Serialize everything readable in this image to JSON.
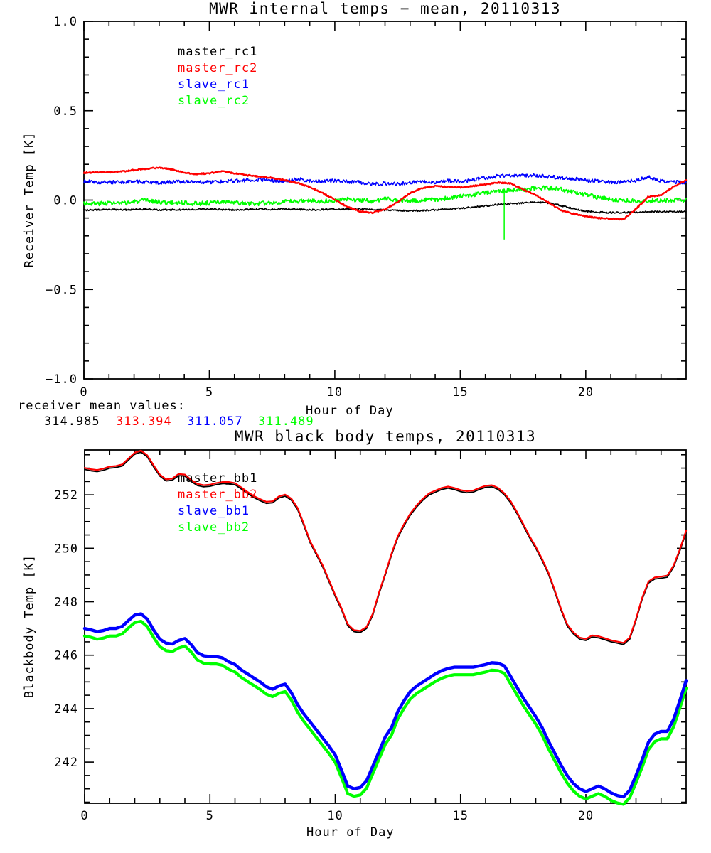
{
  "figure": {
    "background": "#ffffff",
    "text_color": "#000000"
  },
  "chart_data": [
    {
      "type": "line",
      "title": "MWR internal temps − mean, 20110313",
      "xlabel": "Hour of Day",
      "ylabel": "Receiver Temp [K]",
      "xlim": [
        0,
        24
      ],
      "ylim": [
        -1.0,
        1.0
      ],
      "grid": false,
      "legend_position": "top-left-inside",
      "xticks": {
        "major": [
          0,
          5,
          10,
          15,
          20
        ],
        "labels": [
          "0",
          "5",
          "10",
          "15",
          "20"
        ],
        "minor_step": 1
      },
      "yticks": {
        "major": [
          1.0,
          0.5,
          0.0,
          -0.5,
          -1.0
        ],
        "labels": [
          "1.0",
          "0.5",
          "0.0",
          "−0.5",
          "−1.0"
        ],
        "minor_step": 0.1
      },
      "legend": [
        {
          "label": "master_rc1",
          "color": "#000000"
        },
        {
          "label": "master_rc2",
          "color": "#ff0000"
        },
        {
          "label": "slave_rc1",
          "color": "#0000ff"
        },
        {
          "label": "slave_rc2",
          "color": "#00ff00"
        }
      ],
      "x": [
        0,
        0.5,
        1,
        1.5,
        2,
        2.5,
        3,
        3.5,
        4,
        4.5,
        5,
        5.5,
        6,
        6.5,
        7,
        7.5,
        8,
        8.5,
        9,
        9.5,
        10,
        10.5,
        11,
        11.5,
        12,
        12.5,
        13,
        13.5,
        14,
        14.5,
        15,
        15.5,
        16,
        16.5,
        17,
        17.5,
        18,
        18.5,
        19,
        19.5,
        20,
        20.5,
        21,
        21.5,
        22,
        22.5,
        23,
        23.5,
        24
      ],
      "series": [
        {
          "name": "slave_rc2",
          "color": "#00ff00",
          "width": 1.8,
          "noise": 0.012,
          "values": [
            -0.016,
            -0.02,
            -0.015,
            -0.02,
            -0.01,
            -0.002,
            -0.01,
            -0.016,
            -0.014,
            -0.02,
            -0.016,
            -0.01,
            -0.015,
            -0.02,
            -0.02,
            -0.014,
            -0.01,
            -0.006,
            -0.002,
            -0.006,
            0,
            0.004,
            0,
            -0.006,
            0.008,
            -0.002,
            -0.006,
            0,
            0.004,
            0.01,
            0.02,
            0.03,
            0.044,
            0.051,
            0.055,
            0.06,
            0.066,
            0.07,
            0.06,
            0.045,
            0.03,
            0.014,
            0.004,
            0,
            -0.002,
            -0.006,
            -0.002,
            0,
            0
          ]
        },
        {
          "name": "master_rc1",
          "color": "#000000",
          "width": 1.6,
          "noise": 0.0045,
          "values": [
            -0.055,
            -0.055,
            -0.052,
            -0.055,
            -0.053,
            -0.05,
            -0.055,
            -0.053,
            -0.055,
            -0.052,
            -0.05,
            -0.053,
            -0.055,
            -0.052,
            -0.05,
            -0.052,
            -0.05,
            -0.052,
            -0.055,
            -0.053,
            -0.05,
            -0.052,
            -0.05,
            -0.053,
            -0.055,
            -0.058,
            -0.06,
            -0.058,
            -0.055,
            -0.05,
            -0.045,
            -0.04,
            -0.032,
            -0.025,
            -0.02,
            -0.016,
            -0.012,
            -0.016,
            -0.03,
            -0.048,
            -0.062,
            -0.068,
            -0.07,
            -0.07,
            -0.068,
            -0.066,
            -0.065,
            -0.065,
            -0.065
          ]
        },
        {
          "name": "slave_rc1",
          "color": "#0000ff",
          "width": 1.6,
          "noise": 0.01,
          "values": [
            0.105,
            0.102,
            0.1,
            0.103,
            0.105,
            0.1,
            0.098,
            0.1,
            0.104,
            0.102,
            0.1,
            0.104,
            0.108,
            0.112,
            0.115,
            0.11,
            0.105,
            0.118,
            0.11,
            0.104,
            0.108,
            0.104,
            0.1,
            0.09,
            0.094,
            0.09,
            0.098,
            0.104,
            0.1,
            0.108,
            0.104,
            0.114,
            0.124,
            0.134,
            0.139,
            0.135,
            0.139,
            0.131,
            0.125,
            0.12,
            0.111,
            0.106,
            0.1,
            0.104,
            0.109,
            0.131,
            0.106,
            0.1,
            0.1
          ]
        },
        {
          "name": "master_rc2",
          "color": "#ff0000",
          "width": 2.4,
          "noise": 0.0035,
          "values": [
            0.153,
            0.155,
            0.156,
            0.16,
            0.168,
            0.176,
            0.181,
            0.172,
            0.152,
            0.146,
            0.15,
            0.161,
            0.15,
            0.139,
            0.131,
            0.124,
            0.112,
            0.096,
            0.072,
            0.04,
            0.002,
            -0.038,
            -0.063,
            -0.07,
            -0.052,
            -0.012,
            0.04,
            0.068,
            0.078,
            0.074,
            0.07,
            0.079,
            0.088,
            0.098,
            0.094,
            0.06,
            0.028,
            -0.012,
            -0.056,
            -0.076,
            -0.09,
            -0.1,
            -0.103,
            -0.108,
            -0.05,
            0.02,
            0.028,
            0.075,
            0.112
          ]
        }
      ],
      "annotations": [
        {
          "type": "vline",
          "x": 16.75,
          "y1": 0.05,
          "y2": -0.22,
          "color": "#00ff00",
          "width": 1.5,
          "note": "green dropout spike"
        }
      ],
      "footer": {
        "label": "receiver mean values:",
        "values": [
          {
            "text": "314.985",
            "color": "#000000"
          },
          {
            "text": "313.394",
            "color": "#ff0000"
          },
          {
            "text": "311.057",
            "color": "#0000ff"
          },
          {
            "text": "311.489",
            "color": "#00ff00"
          }
        ]
      }
    },
    {
      "type": "line",
      "title": "MWR black body temps, 20110313",
      "xlabel": "Hour of Day",
      "ylabel": "Blackbody Temp [K]",
      "xlim": [
        0,
        24
      ],
      "ylim": [
        240.46,
        253.68
      ],
      "grid": false,
      "legend_position": "top-left-inside",
      "xticks": {
        "major": [
          0,
          5,
          10,
          15,
          20
        ],
        "labels": [
          "0",
          "5",
          "10",
          "15",
          "20"
        ],
        "minor_step": 1
      },
      "yticks": {
        "major": [
          252,
          250,
          248,
          246,
          244,
          242
        ],
        "labels": [
          "252",
          "250",
          "248",
          "246",
          "244",
          "242"
        ],
        "minor_step": 0.5
      },
      "legend": [
        {
          "label": "master_bb1",
          "color": "#000000"
        },
        {
          "label": "master_bb2",
          "color": "#ff0000"
        },
        {
          "label": "slave_bb1",
          "color": "#0000ff"
        },
        {
          "label": "slave_bb2",
          "color": "#00ff00"
        }
      ],
      "x": [
        0,
        0.25,
        0.5,
        0.75,
        1,
        1.25,
        1.5,
        1.75,
        2,
        2.25,
        2.5,
        2.75,
        3,
        3.25,
        3.5,
        3.75,
        4,
        4.25,
        4.5,
        4.75,
        5,
        5.25,
        5.5,
        5.75,
        6,
        6.25,
        6.5,
        6.75,
        7,
        7.25,
        7.5,
        7.75,
        8,
        8.25,
        8.5,
        8.75,
        9,
        9.25,
        9.5,
        9.75,
        10,
        10.25,
        10.5,
        10.75,
        11,
        11.25,
        11.5,
        11.75,
        12,
        12.25,
        12.5,
        12.75,
        13,
        13.25,
        13.5,
        13.75,
        14,
        14.25,
        14.5,
        14.75,
        15,
        15.25,
        15.5,
        15.75,
        16,
        16.25,
        16.5,
        16.75,
        17,
        17.25,
        17.5,
        17.75,
        18,
        18.25,
        18.5,
        18.75,
        19,
        19.25,
        19.5,
        19.75,
        20,
        20.25,
        20.5,
        20.75,
        21,
        21.25,
        21.5,
        21.75,
        22,
        22.25,
        22.5,
        22.75,
        23,
        23.25,
        23.5,
        23.75,
        24
      ],
      "series": [
        {
          "name": "slave_bb2",
          "color": "#00ff00",
          "width": 4.2,
          "noise": 0,
          "offset_of": "slave_bb1",
          "offset": -0.28
        },
        {
          "name": "slave_bb1",
          "color": "#0000ff",
          "width": 4.4,
          "noise": 0,
          "values": [
            247.0,
            246.95,
            246.88,
            246.92,
            247.0,
            247.0,
            247.08,
            247.3,
            247.5,
            247.55,
            247.35,
            246.95,
            246.6,
            246.45,
            246.42,
            246.55,
            246.62,
            246.4,
            246.1,
            245.98,
            245.95,
            245.95,
            245.9,
            245.75,
            245.65,
            245.45,
            245.3,
            245.15,
            245.0,
            244.82,
            244.73,
            244.85,
            244.92,
            244.6,
            244.15,
            243.8,
            243.5,
            243.2,
            242.9,
            242.6,
            242.27,
            241.7,
            241.1,
            241.0,
            241.05,
            241.3,
            241.85,
            242.4,
            242.95,
            243.3,
            243.9,
            244.3,
            244.65,
            244.85,
            245.0,
            245.15,
            245.3,
            245.42,
            245.5,
            245.55,
            245.55,
            245.55,
            245.55,
            245.6,
            245.65,
            245.72,
            245.7,
            245.6,
            245.2,
            244.8,
            244.4,
            244.05,
            243.7,
            243.3,
            242.8,
            242.35,
            241.9,
            241.5,
            241.2,
            241.0,
            240.9,
            241.0,
            241.1,
            241.0,
            240.85,
            240.75,
            240.7,
            240.95,
            241.5,
            242.1,
            242.75,
            243.05,
            243.15,
            243.15,
            243.6,
            244.3,
            245.05
          ]
        },
        {
          "name": "master_bb1",
          "color": "#000000",
          "width": 1.8,
          "noise": 0,
          "values": [
            252.95,
            252.9,
            252.87,
            252.92,
            253.0,
            253.02,
            253.08,
            253.3,
            253.52,
            253.6,
            253.42,
            253.05,
            252.7,
            252.52,
            252.55,
            252.72,
            252.7,
            252.5,
            252.35,
            252.3,
            252.32,
            252.38,
            252.42,
            252.42,
            252.38,
            252.22,
            252.05,
            251.9,
            251.78,
            251.68,
            251.7,
            251.88,
            251.95,
            251.8,
            251.45,
            250.85,
            250.2,
            249.75,
            249.3,
            248.75,
            248.2,
            247.7,
            247.1,
            246.88,
            246.85,
            247.0,
            247.5,
            248.3,
            249.0,
            249.75,
            250.4,
            250.85,
            251.25,
            251.55,
            251.8,
            252.0,
            252.1,
            252.2,
            252.25,
            252.2,
            252.12,
            252.08,
            252.1,
            252.2,
            252.28,
            252.3,
            252.2,
            252.0,
            251.7,
            251.3,
            250.85,
            250.4,
            250.0,
            249.55,
            249.05,
            248.4,
            247.7,
            247.1,
            246.8,
            246.6,
            246.55,
            246.68,
            246.65,
            246.58,
            246.5,
            246.45,
            246.4,
            246.6,
            247.3,
            248.1,
            248.7,
            248.85,
            248.88,
            248.92,
            249.3,
            249.9,
            250.6
          ]
        },
        {
          "name": "master_bb2",
          "color": "#ff0000",
          "width": 2.2,
          "noise": 0,
          "offset_of": "master_bb1",
          "offset": 0.06
        }
      ],
      "annotations": [],
      "footer": null
    }
  ]
}
